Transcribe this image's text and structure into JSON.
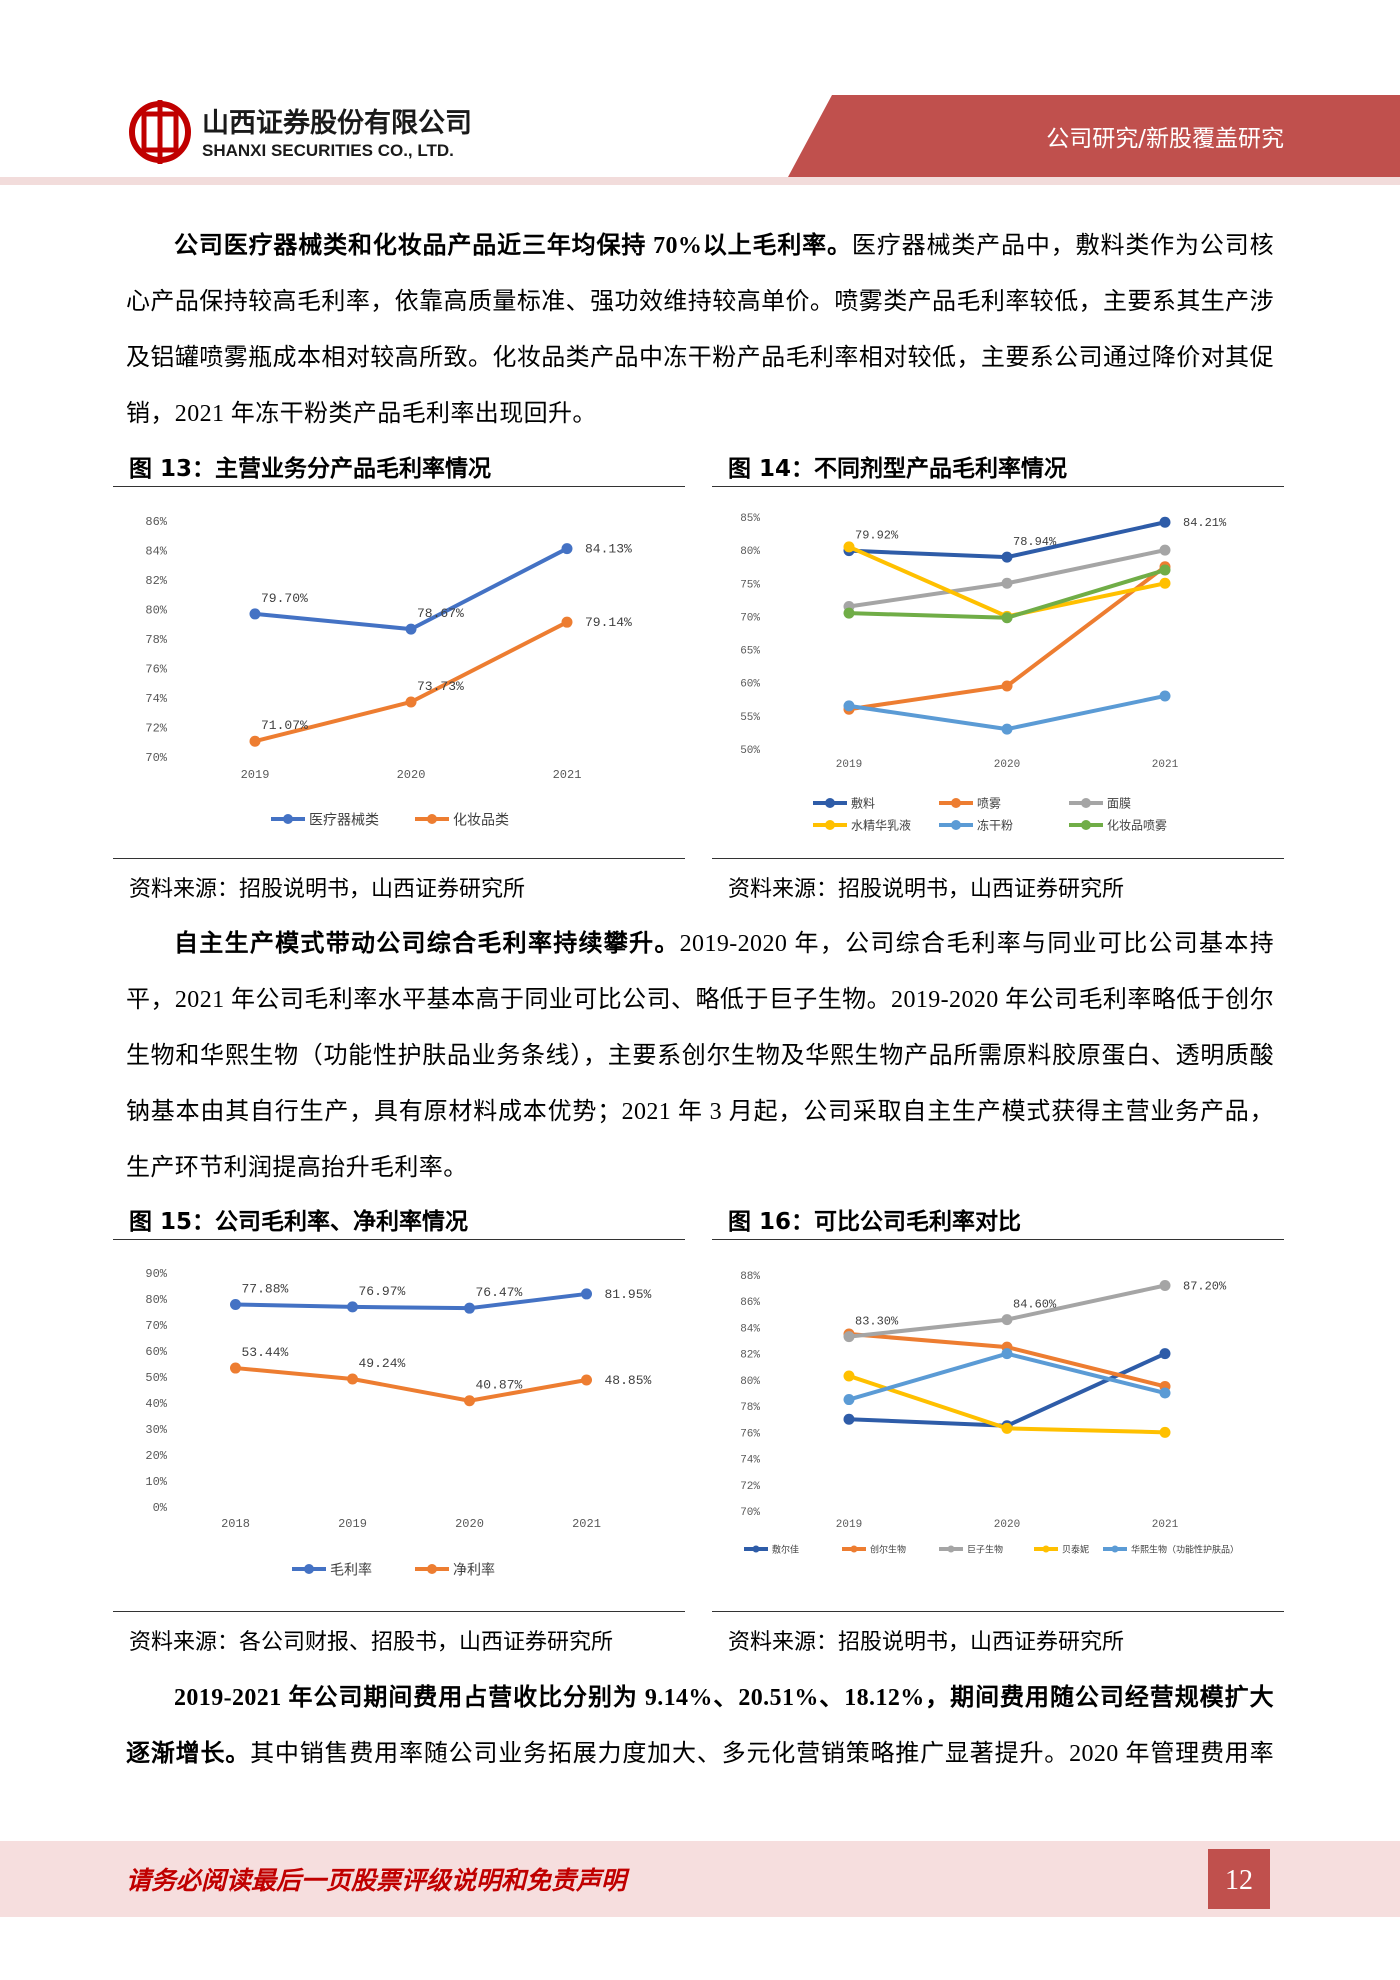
{
  "header": {
    "company_cn": "山西证券股份有限公司",
    "company_en": "SHANXI SECURITIES CO., LTD.",
    "section": "公司研究/新股覆盖研究"
  },
  "paragraphs": [
    {
      "bold": "公司医疗器械类和化妆品产品近三年均保持 70%以上毛利率。",
      "text": "医疗器械类产品中，敷料类作为公司核心产品保持较高毛利率，依靠高质量标准、强功效维持较高单价。喷雾类产品毛利率较低，主要系其生产涉及铝罐喷雾瓶成本相对较高所致。化妆品类产品中冻干粉产品毛利率相对较低，主要系公司通过降价对其促销，2021 年冻干粉类产品毛利率出现回升。"
    },
    {
      "bold": "自主生产模式带动公司综合毛利率持续攀升。",
      "text": "2019-2020 年，公司综合毛利率与同业可比公司基本持平，2021 年公司毛利率水平基本高于同业可比公司、略低于巨子生物。2019-2020 年公司毛利率略低于创尔生物和华熙生物（功能性护肤品业务条线），主要系创尔生物及华熙生物产品所需原料胶原蛋白、透明质酸钠基本由其自行生产，具有原材料成本优势；2021 年 3 月起，公司采取自主生产模式获得主营业务产品，生产环节利润提高抬升毛利率。"
    },
    {
      "bold": "2019-2021 年公司期间费用占营收比分别为 9.14%、20.51%、18.12%，期间费用随公司经营规模扩大逐渐增长。",
      "text": "其中销售费用率随公司业务拓展力度加大、多元化营销策略推广显著提升。2020 年管理费用率"
    }
  ],
  "chart_data": [
    {
      "type": "line",
      "title": "图 13：主营业务分产品毛利率情况",
      "source": "资料来源：招股说明书，山西证券研究所",
      "categories": [
        "2019",
        "2020",
        "2021"
      ],
      "series": [
        {
          "name": "医疗器械类",
          "color": "#4472c4",
          "values": [
            79.7,
            78.67,
            84.13
          ],
          "value_labels": [
            "79.70%",
            "78.67%",
            "84.13%"
          ]
        },
        {
          "name": "化妆品类",
          "color": "#ed7d31",
          "values": [
            71.07,
            73.73,
            79.14
          ],
          "value_labels": [
            "71.07%",
            "73.73%",
            "79.14%"
          ]
        }
      ],
      "ylim": [
        70,
        86
      ],
      "yticks": [
        {
          "value": 70,
          "label": "70%"
        },
        {
          "value": 72,
          "label": "72%"
        },
        {
          "value": 74,
          "label": "74%"
        },
        {
          "value": 76,
          "label": "76%"
        },
        {
          "value": 78,
          "label": "78%"
        },
        {
          "value": 80,
          "label": "80%"
        },
        {
          "value": 82,
          "label": "82%"
        },
        {
          "value": 84,
          "label": "84%"
        },
        {
          "value": 86,
          "label": "86%"
        }
      ],
      "grid": false
    },
    {
      "type": "line",
      "title": "图 14：不同剂型产品毛利率情况",
      "source": "资料来源：招股说明书，山西证券研究所",
      "categories": [
        "2019",
        "2020",
        "2021"
      ],
      "series": [
        {
          "name": "敷料",
          "color": "#2e5ca8",
          "values": [
            79.92,
            78.94,
            84.21
          ],
          "value_labels": [
            "79.92%",
            "78.94%",
            "84.21%"
          ]
        },
        {
          "name": "喷雾",
          "color": "#ed7d31",
          "values": [
            56,
            59.5,
            77.5
          ]
        },
        {
          "name": "面膜",
          "color": "#a5a5a5",
          "values": [
            71.5,
            75,
            80
          ]
        },
        {
          "name": "水精华乳液",
          "color": "#ffc000",
          "values": [
            80.5,
            70,
            75
          ]
        },
        {
          "name": "冻干粉",
          "color": "#5b9bd5",
          "values": [
            56.5,
            53,
            58
          ]
        },
        {
          "name": "化妆品喷雾",
          "color": "#70ad47",
          "values": [
            70.5,
            69.8,
            77
          ]
        }
      ],
      "ylim": [
        50,
        85
      ],
      "yticks": [
        {
          "value": 50,
          "label": "50%"
        },
        {
          "value": 55,
          "label": "55%"
        },
        {
          "value": 60,
          "label": "60%"
        },
        {
          "value": 65,
          "label": "65%"
        },
        {
          "value": 70,
          "label": "70%"
        },
        {
          "value": 75,
          "label": "75%"
        },
        {
          "value": 80,
          "label": "80%"
        },
        {
          "value": 85,
          "label": "85%"
        }
      ],
      "grid": false
    },
    {
      "type": "line",
      "title": "图 15：公司毛利率、净利率情况",
      "source": "资料来源：各公司财报、招股书，山西证券研究所",
      "categories": [
        "2018",
        "2019",
        "2020",
        "2021"
      ],
      "series": [
        {
          "name": "毛利率",
          "color": "#4472c4",
          "values": [
            77.88,
            76.97,
            76.47,
            81.95
          ],
          "value_labels": [
            "77.88%",
            "76.97%",
            "76.47%",
            "81.95%"
          ]
        },
        {
          "name": "净利率",
          "color": "#ed7d31",
          "values": [
            53.44,
            49.24,
            40.87,
            48.85
          ],
          "value_labels": [
            "53.44%",
            "49.24%",
            "40.87%",
            "48.85%"
          ]
        }
      ],
      "ylim": [
        0,
        90
      ],
      "yticks": [
        {
          "value": 0,
          "label": "0%"
        },
        {
          "value": 10,
          "label": "10%"
        },
        {
          "value": 20,
          "label": "20%"
        },
        {
          "value": 30,
          "label": "30%"
        },
        {
          "value": 40,
          "label": "40%"
        },
        {
          "value": 50,
          "label": "50%"
        },
        {
          "value": 60,
          "label": "60%"
        },
        {
          "value": 70,
          "label": "70%"
        },
        {
          "value": 80,
          "label": "80%"
        },
        {
          "value": 90,
          "label": "90%"
        }
      ],
      "grid": false
    },
    {
      "type": "line",
      "title": "图 16：可比公司毛利率对比",
      "source": "资料来源：招股说明书，山西证券研究所",
      "categories": [
        "2019",
        "2020",
        "2021"
      ],
      "series": [
        {
          "name": "敷尔佳",
          "color": "#2e5ca8",
          "values": [
            77,
            76.5,
            82
          ]
        },
        {
          "name": "创尔生物",
          "color": "#ed7d31",
          "values": [
            83.5,
            82.5,
            79.5
          ]
        },
        {
          "name": "巨子生物",
          "color": "#a5a5a5",
          "values": [
            83.3,
            84.6,
            87.2
          ],
          "value_labels": [
            "83.30%",
            "84.60%",
            "87.20%"
          ]
        },
        {
          "name": "贝泰妮",
          "color": "#ffc000",
          "values": [
            80.3,
            76.3,
            76
          ]
        },
        {
          "name": "华熙生物（功能性护肤品）",
          "color": "#5b9bd5",
          "values": [
            78.5,
            82,
            79
          ]
        }
      ],
      "ylim": [
        70,
        88
      ],
      "yticks": [
        {
          "value": 70,
          "label": "70%"
        },
        {
          "value": 72,
          "label": "72%"
        },
        {
          "value": 74,
          "label": "74%"
        },
        {
          "value": 76,
          "label": "76%"
        },
        {
          "value": 78,
          "label": "78%"
        },
        {
          "value": 80,
          "label": "80%"
        },
        {
          "value": 82,
          "label": "82%"
        },
        {
          "value": 84,
          "label": "84%"
        },
        {
          "value": 86,
          "label": "86%"
        },
        {
          "value": 88,
          "label": "88%"
        }
      ],
      "grid": false
    }
  ],
  "footer": {
    "disclaimer": "请务必阅读最后一页股票评级说明和免责声明",
    "page": "12"
  }
}
